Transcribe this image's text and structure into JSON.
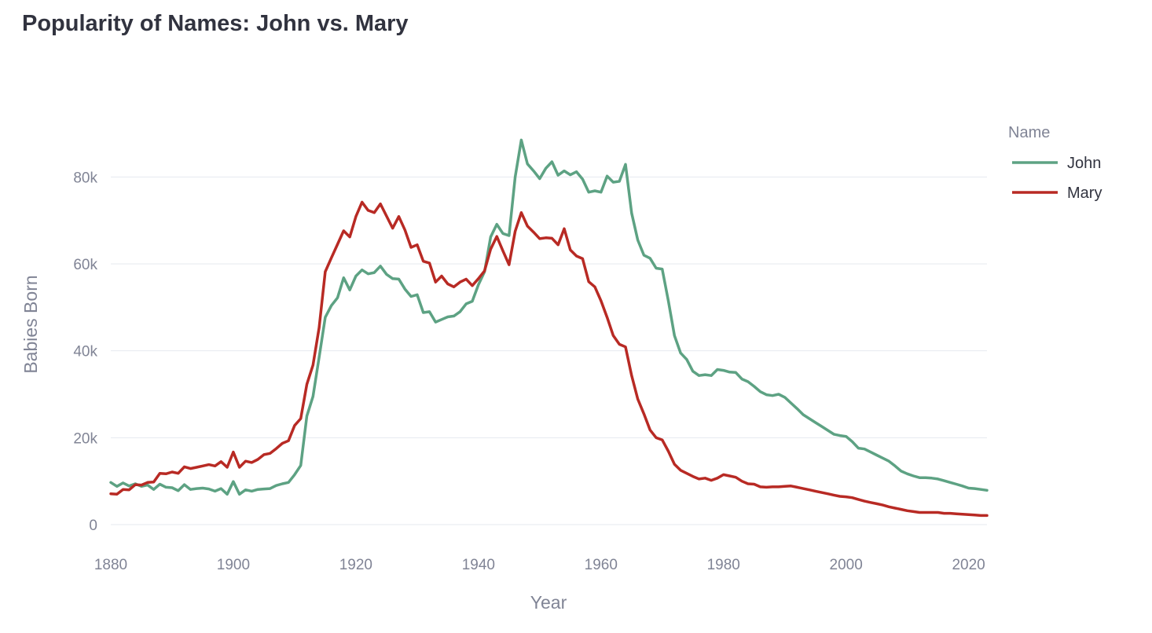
{
  "chart_data": {
    "type": "line",
    "title": "Popularity of Names: John vs. Mary",
    "xlabel": "Year",
    "ylabel": "Babies Born",
    "xlim": [
      1880,
      2023
    ],
    "ylim": [
      0,
      90000
    ],
    "x_ticks": [
      1880,
      1900,
      1920,
      1940,
      1960,
      1980,
      2000,
      2020
    ],
    "y_ticks": [
      0,
      20000,
      40000,
      60000,
      80000
    ],
    "y_tick_labels": [
      "0",
      "20k",
      "40k",
      "60k",
      "80k"
    ],
    "grid": "horizontal",
    "legend": {
      "title": "Name",
      "placement": "top-right"
    },
    "series": [
      {
        "name": "John",
        "color": "#5da283",
        "points": [
          [
            1880,
            9700
          ],
          [
            1881,
            8800
          ],
          [
            1882,
            9600
          ],
          [
            1883,
            8900
          ],
          [
            1884,
            9400
          ],
          [
            1885,
            8800
          ],
          [
            1886,
            9100
          ],
          [
            1887,
            8100
          ],
          [
            1888,
            9300
          ],
          [
            1889,
            8600
          ],
          [
            1890,
            8500
          ],
          [
            1891,
            7800
          ],
          [
            1892,
            9200
          ],
          [
            1893,
            8100
          ],
          [
            1894,
            8300
          ],
          [
            1895,
            8400
          ],
          [
            1896,
            8200
          ],
          [
            1897,
            7700
          ],
          [
            1898,
            8300
          ],
          [
            1899,
            7000
          ],
          [
            1900,
            9900
          ],
          [
            1901,
            7000
          ],
          [
            1902,
            8000
          ],
          [
            1903,
            7700
          ],
          [
            1904,
            8100
          ],
          [
            1905,
            8200
          ],
          [
            1906,
            8300
          ],
          [
            1907,
            9000
          ],
          [
            1908,
            9400
          ],
          [
            1909,
            9700
          ],
          [
            1910,
            11500
          ],
          [
            1911,
            13600
          ],
          [
            1912,
            25000
          ],
          [
            1913,
            29500
          ],
          [
            1914,
            38500
          ],
          [
            1915,
            47700
          ],
          [
            1916,
            50400
          ],
          [
            1917,
            52200
          ],
          [
            1918,
            56800
          ],
          [
            1919,
            54000
          ],
          [
            1920,
            57200
          ],
          [
            1921,
            58600
          ],
          [
            1922,
            57700
          ],
          [
            1923,
            58000
          ],
          [
            1924,
            59500
          ],
          [
            1925,
            57600
          ],
          [
            1926,
            56600
          ],
          [
            1927,
            56500
          ],
          [
            1928,
            54200
          ],
          [
            1929,
            52500
          ],
          [
            1930,
            52900
          ],
          [
            1931,
            48800
          ],
          [
            1932,
            49000
          ],
          [
            1933,
            46600
          ],
          [
            1934,
            47200
          ],
          [
            1935,
            47800
          ],
          [
            1936,
            48000
          ],
          [
            1937,
            49000
          ],
          [
            1938,
            50800
          ],
          [
            1939,
            51400
          ],
          [
            1940,
            55200
          ],
          [
            1941,
            58200
          ],
          [
            1942,
            66200
          ],
          [
            1943,
            69100
          ],
          [
            1944,
            67000
          ],
          [
            1945,
            66500
          ],
          [
            1946,
            80000
          ],
          [
            1947,
            88500
          ],
          [
            1948,
            83000
          ],
          [
            1949,
            81400
          ],
          [
            1950,
            79600
          ],
          [
            1951,
            82000
          ],
          [
            1952,
            83500
          ],
          [
            1953,
            80400
          ],
          [
            1954,
            81400
          ],
          [
            1955,
            80500
          ],
          [
            1956,
            81200
          ],
          [
            1957,
            79500
          ],
          [
            1958,
            76500
          ],
          [
            1959,
            76800
          ],
          [
            1960,
            76500
          ],
          [
            1961,
            80200
          ],
          [
            1962,
            78800
          ],
          [
            1963,
            79000
          ],
          [
            1964,
            82900
          ],
          [
            1965,
            71700
          ],
          [
            1966,
            65500
          ],
          [
            1967,
            62000
          ],
          [
            1968,
            61300
          ],
          [
            1969,
            59000
          ],
          [
            1970,
            58800
          ],
          [
            1971,
            51500
          ],
          [
            1972,
            43500
          ],
          [
            1973,
            39500
          ],
          [
            1974,
            38000
          ],
          [
            1975,
            35300
          ],
          [
            1976,
            34300
          ],
          [
            1977,
            34500
          ],
          [
            1978,
            34300
          ],
          [
            1979,
            35700
          ],
          [
            1980,
            35500
          ],
          [
            1981,
            35100
          ],
          [
            1982,
            35000
          ],
          [
            1983,
            33500
          ],
          [
            1984,
            32900
          ],
          [
            1985,
            31800
          ],
          [
            1986,
            30600
          ],
          [
            1987,
            29900
          ],
          [
            1988,
            29700
          ],
          [
            1989,
            30000
          ],
          [
            1990,
            29300
          ],
          [
            1991,
            28000
          ],
          [
            1992,
            26700
          ],
          [
            1993,
            25300
          ],
          [
            1994,
            24400
          ],
          [
            1995,
            23500
          ],
          [
            1996,
            22600
          ],
          [
            1997,
            21700
          ],
          [
            1998,
            20800
          ],
          [
            1999,
            20500
          ],
          [
            2000,
            20300
          ],
          [
            2001,
            19100
          ],
          [
            2002,
            17600
          ],
          [
            2003,
            17400
          ],
          [
            2004,
            16700
          ],
          [
            2005,
            16000
          ],
          [
            2006,
            15300
          ],
          [
            2007,
            14600
          ],
          [
            2008,
            13500
          ],
          [
            2009,
            12300
          ],
          [
            2010,
            11700
          ],
          [
            2011,
            11200
          ],
          [
            2012,
            10800
          ],
          [
            2013,
            10800
          ],
          [
            2014,
            10700
          ],
          [
            2015,
            10500
          ],
          [
            2016,
            10100
          ],
          [
            2017,
            9700
          ],
          [
            2018,
            9300
          ],
          [
            2019,
            8900
          ],
          [
            2020,
            8400
          ],
          [
            2021,
            8300
          ],
          [
            2022,
            8100
          ],
          [
            2023,
            7900
          ]
        ]
      },
      {
        "name": "Mary",
        "color": "#b82a24",
        "points": [
          [
            1880,
            7100
          ],
          [
            1881,
            7000
          ],
          [
            1882,
            8100
          ],
          [
            1883,
            8000
          ],
          [
            1884,
            9200
          ],
          [
            1885,
            9100
          ],
          [
            1886,
            9700
          ],
          [
            1887,
            9800
          ],
          [
            1888,
            11800
          ],
          [
            1889,
            11700
          ],
          [
            1890,
            12100
          ],
          [
            1891,
            11800
          ],
          [
            1892,
            13300
          ],
          [
            1893,
            12900
          ],
          [
            1894,
            13200
          ],
          [
            1895,
            13500
          ],
          [
            1896,
            13800
          ],
          [
            1897,
            13500
          ],
          [
            1898,
            14500
          ],
          [
            1899,
            13200
          ],
          [
            1900,
            16700
          ],
          [
            1901,
            13200
          ],
          [
            1902,
            14600
          ],
          [
            1903,
            14300
          ],
          [
            1904,
            15000
          ],
          [
            1905,
            16100
          ],
          [
            1906,
            16400
          ],
          [
            1907,
            17500
          ],
          [
            1908,
            18700
          ],
          [
            1909,
            19300
          ],
          [
            1910,
            22800
          ],
          [
            1911,
            24400
          ],
          [
            1912,
            32300
          ],
          [
            1913,
            36700
          ],
          [
            1914,
            45300
          ],
          [
            1915,
            58200
          ],
          [
            1916,
            61400
          ],
          [
            1917,
            64500
          ],
          [
            1918,
            67600
          ],
          [
            1919,
            66200
          ],
          [
            1920,
            70900
          ],
          [
            1921,
            74200
          ],
          [
            1922,
            72300
          ],
          [
            1923,
            71800
          ],
          [
            1924,
            73800
          ],
          [
            1925,
            71000
          ],
          [
            1926,
            68200
          ],
          [
            1927,
            70900
          ],
          [
            1928,
            67800
          ],
          [
            1929,
            63800
          ],
          [
            1930,
            64400
          ],
          [
            1931,
            60600
          ],
          [
            1932,
            60200
          ],
          [
            1933,
            55800
          ],
          [
            1934,
            57200
          ],
          [
            1935,
            55400
          ],
          [
            1936,
            54700
          ],
          [
            1937,
            55800
          ],
          [
            1938,
            56500
          ],
          [
            1939,
            55000
          ],
          [
            1940,
            56600
          ],
          [
            1941,
            58400
          ],
          [
            1942,
            63400
          ],
          [
            1943,
            66300
          ],
          [
            1944,
            63000
          ],
          [
            1945,
            59800
          ],
          [
            1946,
            67500
          ],
          [
            1947,
            71800
          ],
          [
            1948,
            68700
          ],
          [
            1949,
            67300
          ],
          [
            1950,
            65800
          ],
          [
            1951,
            66000
          ],
          [
            1952,
            65900
          ],
          [
            1953,
            64400
          ],
          [
            1954,
            68100
          ],
          [
            1955,
            63200
          ],
          [
            1956,
            61800
          ],
          [
            1957,
            61200
          ],
          [
            1958,
            55900
          ],
          [
            1959,
            54700
          ],
          [
            1960,
            51500
          ],
          [
            1961,
            47700
          ],
          [
            1962,
            43500
          ],
          [
            1963,
            41500
          ],
          [
            1964,
            40900
          ],
          [
            1965,
            34300
          ],
          [
            1966,
            28900
          ],
          [
            1967,
            25500
          ],
          [
            1968,
            21800
          ],
          [
            1969,
            20000
          ],
          [
            1970,
            19500
          ],
          [
            1971,
            16900
          ],
          [
            1972,
            13900
          ],
          [
            1973,
            12500
          ],
          [
            1974,
            11800
          ],
          [
            1975,
            11100
          ],
          [
            1976,
            10500
          ],
          [
            1977,
            10700
          ],
          [
            1978,
            10200
          ],
          [
            1979,
            10700
          ],
          [
            1980,
            11500
          ],
          [
            1981,
            11200
          ],
          [
            1982,
            10900
          ],
          [
            1983,
            10000
          ],
          [
            1984,
            9400
          ],
          [
            1985,
            9300
          ],
          [
            1986,
            8700
          ],
          [
            1987,
            8600
          ],
          [
            1988,
            8700
          ],
          [
            1989,
            8700
          ],
          [
            1990,
            8800
          ],
          [
            1991,
            8900
          ],
          [
            1992,
            8600
          ],
          [
            1993,
            8300
          ],
          [
            1994,
            8000
          ],
          [
            1995,
            7700
          ],
          [
            1996,
            7400
          ],
          [
            1997,
            7100
          ],
          [
            1998,
            6800
          ],
          [
            1999,
            6500
          ],
          [
            2000,
            6400
          ],
          [
            2001,
            6200
          ],
          [
            2002,
            5800
          ],
          [
            2003,
            5400
          ],
          [
            2004,
            5100
          ],
          [
            2005,
            4800
          ],
          [
            2006,
            4500
          ],
          [
            2007,
            4100
          ],
          [
            2008,
            3800
          ],
          [
            2009,
            3500
          ],
          [
            2010,
            3200
          ],
          [
            2011,
            3000
          ],
          [
            2012,
            2800
          ],
          [
            2013,
            2800
          ],
          [
            2014,
            2800
          ],
          [
            2015,
            2800
          ],
          [
            2016,
            2600
          ],
          [
            2017,
            2600
          ],
          [
            2018,
            2500
          ],
          [
            2019,
            2400
          ],
          [
            2020,
            2300
          ],
          [
            2021,
            2200
          ],
          [
            2022,
            2100
          ],
          [
            2023,
            2100
          ]
        ]
      }
    ]
  }
}
